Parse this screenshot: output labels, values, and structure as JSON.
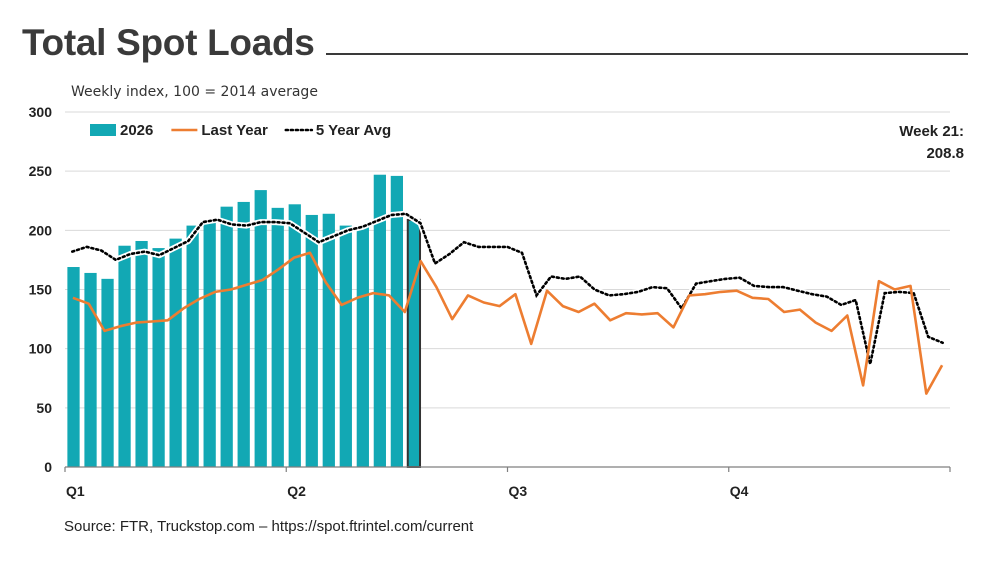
{
  "header": {
    "title": "Total Spot Loads",
    "subtitle": "Weekly index, 100 = 2014 average"
  },
  "callout": {
    "line1": "Week 21:",
    "line2": "208.8"
  },
  "footer": {
    "source": "Source: FTR, Truckstop.com – https://spot.ftrintel.com/current"
  },
  "colors": {
    "bars": "#12a8b4",
    "last_year": "#ed7d31",
    "five_year_avg": "#000000",
    "grid": "#d9d9d9",
    "axis": "#7f7f7f",
    "highlight_border": "#333333"
  },
  "chart_data": {
    "type": "bar",
    "title": "Total Spot Loads",
    "subtitle": "Weekly index, 100 = 2014 average",
    "ylim": [
      0,
      300
    ],
    "y_ticks": [
      0,
      50,
      100,
      150,
      200,
      250,
      300
    ],
    "weeks_total": 52,
    "quarter_labels": [
      "Q1",
      "Q2",
      "Q3",
      "Q4"
    ],
    "quarter_start_weeks": [
      1,
      14,
      27,
      40
    ],
    "grid": true,
    "legend_position": "top-left",
    "series": [
      {
        "name": "2026",
        "type": "bar",
        "values": [
          169,
          164,
          159,
          187,
          191,
          185,
          193,
          204,
          208,
          220,
          224,
          234,
          219,
          222,
          213,
          214,
          204,
          204,
          247,
          246,
          208.8
        ]
      },
      {
        "name": "Last Year",
        "type": "line",
        "values": [
          143,
          138,
          115,
          119,
          122,
          123,
          124,
          134,
          142,
          148,
          150,
          154,
          158,
          167,
          177,
          181,
          156,
          137,
          143,
          147,
          145,
          131,
          174,
          152,
          125,
          145,
          139,
          136,
          146,
          104,
          149,
          136,
          131,
          138,
          124,
          130,
          129,
          130,
          118,
          145,
          146,
          148,
          149,
          143,
          142,
          131,
          133,
          122,
          115,
          128,
          69,
          157,
          150,
          153,
          62,
          86
        ]
      },
      {
        "name": "5 Year Avg",
        "type": "line",
        "style": "dotted",
        "values": [
          182,
          186,
          183,
          175,
          180,
          182,
          179,
          185,
          191,
          207,
          209,
          205,
          204,
          207,
          207,
          206,
          198,
          190,
          195,
          200,
          203,
          208,
          213,
          214,
          206,
          172,
          180,
          190,
          186,
          186,
          186,
          181,
          145,
          161,
          159,
          161,
          150,
          145,
          146,
          148,
          152,
          151,
          134,
          155,
          157,
          159,
          160,
          153,
          152,
          152,
          149,
          146,
          144,
          137,
          141,
          87,
          147,
          148,
          147,
          110,
          105
        ]
      }
    ]
  }
}
